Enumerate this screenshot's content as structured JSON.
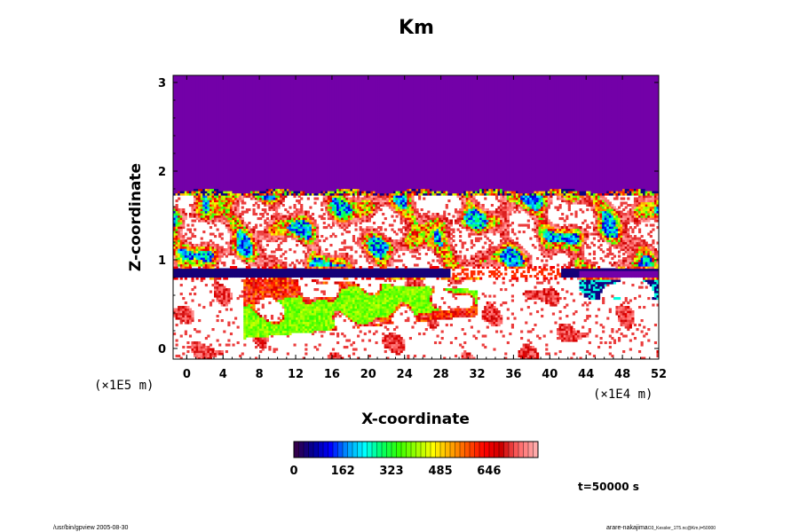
{
  "chart_data": {
    "type": "heatmap",
    "title": "Km",
    "xlabel": "X-coordinate",
    "ylabel": "Z-coordinate",
    "x_scale_note": "(×1E4 m)",
    "y_scale_note": "(×1E5 m)",
    "xlim": [
      -1.5,
      52
    ],
    "ylim": [
      -0.12,
      3.08
    ],
    "x_ticks": [
      0,
      4,
      8,
      12,
      16,
      20,
      24,
      28,
      32,
      36,
      40,
      44,
      48,
      52
    ],
    "y_ticks": [
      0,
      1,
      2,
      3
    ],
    "colorbar": {
      "ticks": [
        "0",
        "162",
        "323",
        "485",
        "646"
      ],
      "range": [
        0,
        808
      ],
      "colors": [
        "#33004d",
        "#000099",
        "#0000ff",
        "#0099ff",
        "#00ffff",
        "#00ff66",
        "#33ff00",
        "#99ff00",
        "#ffff00",
        "#ffaa00",
        "#ff5500",
        "#ff0000",
        "#cc0000",
        "#ff6666",
        "#ffaaaa"
      ]
    },
    "fields": {
      "background_value": 0,
      "upper_layer_top": 1.77,
      "stable_band": [
        0.78,
        0.92
      ],
      "plume_region": {
        "x": [
          6,
          32
        ],
        "z": [
          0.1,
          0.9
        ]
      }
    }
  },
  "annotations": {
    "time": "t=50000 s",
    "footer_left": "/usr/bin/gpview 2005-08-30",
    "footer_right": "arare-nakajima",
    "footer_right_small": "O3_Kessler_1T5.nc@Km,t=50000"
  },
  "colors": {
    "background_field": "#7300a8",
    "frame": "#000000"
  }
}
